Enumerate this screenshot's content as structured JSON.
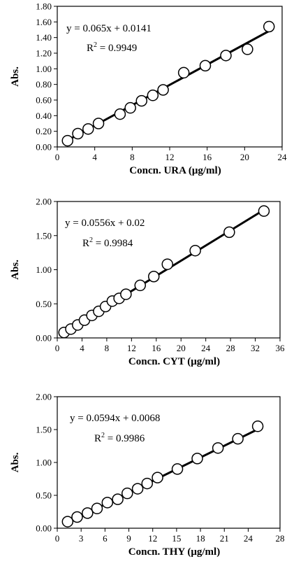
{
  "chart_data": [
    {
      "type": "scatter",
      "ylabel": "Abs.",
      "xlabel": "Concn. URA (μg/ml)",
      "xlim": [
        0,
        24
      ],
      "ylim": [
        0,
        1.8
      ],
      "xticks": [
        "0",
        "4",
        "8",
        "12",
        "16",
        "20",
        "24"
      ],
      "yticks": [
        "0.00",
        "0.20",
        "0.40",
        "0.60",
        "0.80",
        "1.00",
        "1.20",
        "1.40",
        "1.60",
        "1.80"
      ],
      "equation": "y = 0.065x + 0.0141",
      "r2_prefix": "R",
      "r2_sup": "2",
      "r2_value": " = 0.9949",
      "fit": {
        "slope": 0.065,
        "intercept": 0.0141,
        "x_range": [
          1.1,
          22.6
        ]
      },
      "points": [
        {
          "x": 1.1,
          "y": 0.08
        },
        {
          "x": 2.2,
          "y": 0.17
        },
        {
          "x": 3.3,
          "y": 0.23
        },
        {
          "x": 4.4,
          "y": 0.3
        },
        {
          "x": 6.7,
          "y": 0.42
        },
        {
          "x": 7.8,
          "y": 0.5
        },
        {
          "x": 9.0,
          "y": 0.59
        },
        {
          "x": 10.2,
          "y": 0.66
        },
        {
          "x": 11.3,
          "y": 0.73
        },
        {
          "x": 13.5,
          "y": 0.95
        },
        {
          "x": 15.8,
          "y": 1.04
        },
        {
          "x": 18.0,
          "y": 1.17
        },
        {
          "x": 20.3,
          "y": 1.25
        },
        {
          "x": 22.6,
          "y": 1.54
        }
      ],
      "grid": false
    },
    {
      "type": "scatter",
      "ylabel": "Abs.",
      "xlabel": "Concn. CYT (μg/ml)",
      "xlim": [
        0,
        36
      ],
      "ylim": [
        0,
        2.0
      ],
      "xticks": [
        "0",
        "4",
        "8",
        "12",
        "16",
        "20",
        "24",
        "28",
        "32",
        "36"
      ],
      "yticks": [
        "0.00",
        "0.50",
        "1.00",
        "1.50",
        "2.00"
      ],
      "equation": "y = 0.0556x + 0.02",
      "r2_prefix": "R",
      "r2_sup": "2",
      "r2_value": " = 0.9984",
      "fit": {
        "slope": 0.0556,
        "intercept": 0.02,
        "x_range": [
          1.1,
          33.4
        ]
      },
      "points": [
        {
          "x": 1.1,
          "y": 0.08
        },
        {
          "x": 2.2,
          "y": 0.13
        },
        {
          "x": 3.3,
          "y": 0.19
        },
        {
          "x": 4.4,
          "y": 0.26
        },
        {
          "x": 5.6,
          "y": 0.33
        },
        {
          "x": 6.7,
          "y": 0.39
        },
        {
          "x": 7.8,
          "y": 0.46
        },
        {
          "x": 8.9,
          "y": 0.54
        },
        {
          "x": 10.0,
          "y": 0.58
        },
        {
          "x": 11.1,
          "y": 0.64
        },
        {
          "x": 13.4,
          "y": 0.77
        },
        {
          "x": 15.6,
          "y": 0.9
        },
        {
          "x": 17.8,
          "y": 1.08
        },
        {
          "x": 22.3,
          "y": 1.28
        },
        {
          "x": 27.8,
          "y": 1.55
        },
        {
          "x": 33.4,
          "y": 1.86
        }
      ],
      "grid": false
    },
    {
      "type": "scatter",
      "ylabel": "Abs.",
      "xlabel": "Concn. THY (μg/ml)",
      "xlim": [
        0,
        28
      ],
      "ylim": [
        0,
        2.0
      ],
      "xticks": [
        "0",
        "3",
        "6",
        "9",
        "12",
        "15",
        "18",
        "21",
        "24",
        "28"
      ],
      "yticks": [
        "0.00",
        "0.50",
        "1.00",
        "1.50",
        "2.00"
      ],
      "equation": "y = 0.0594x + 0.0068",
      "r2_prefix": "R",
      "r2_sup": "2",
      "r2_value": " = 0.9986",
      "fit": {
        "slope": 0.0594,
        "intercept": 0.0068,
        "x_range": [
          1.3,
          25.2
        ]
      },
      "points": [
        {
          "x": 1.3,
          "y": 0.1
        },
        {
          "x": 2.5,
          "y": 0.17
        },
        {
          "x": 3.8,
          "y": 0.23
        },
        {
          "x": 5.0,
          "y": 0.3
        },
        {
          "x": 6.3,
          "y": 0.39
        },
        {
          "x": 7.6,
          "y": 0.44
        },
        {
          "x": 8.8,
          "y": 0.53
        },
        {
          "x": 10.1,
          "y": 0.6
        },
        {
          "x": 11.3,
          "y": 0.68
        },
        {
          "x": 12.6,
          "y": 0.77
        },
        {
          "x": 15.1,
          "y": 0.9
        },
        {
          "x": 17.6,
          "y": 1.06
        },
        {
          "x": 20.2,
          "y": 1.22
        },
        {
          "x": 22.7,
          "y": 1.36
        },
        {
          "x": 25.2,
          "y": 1.55
        }
      ],
      "grid": false
    }
  ]
}
